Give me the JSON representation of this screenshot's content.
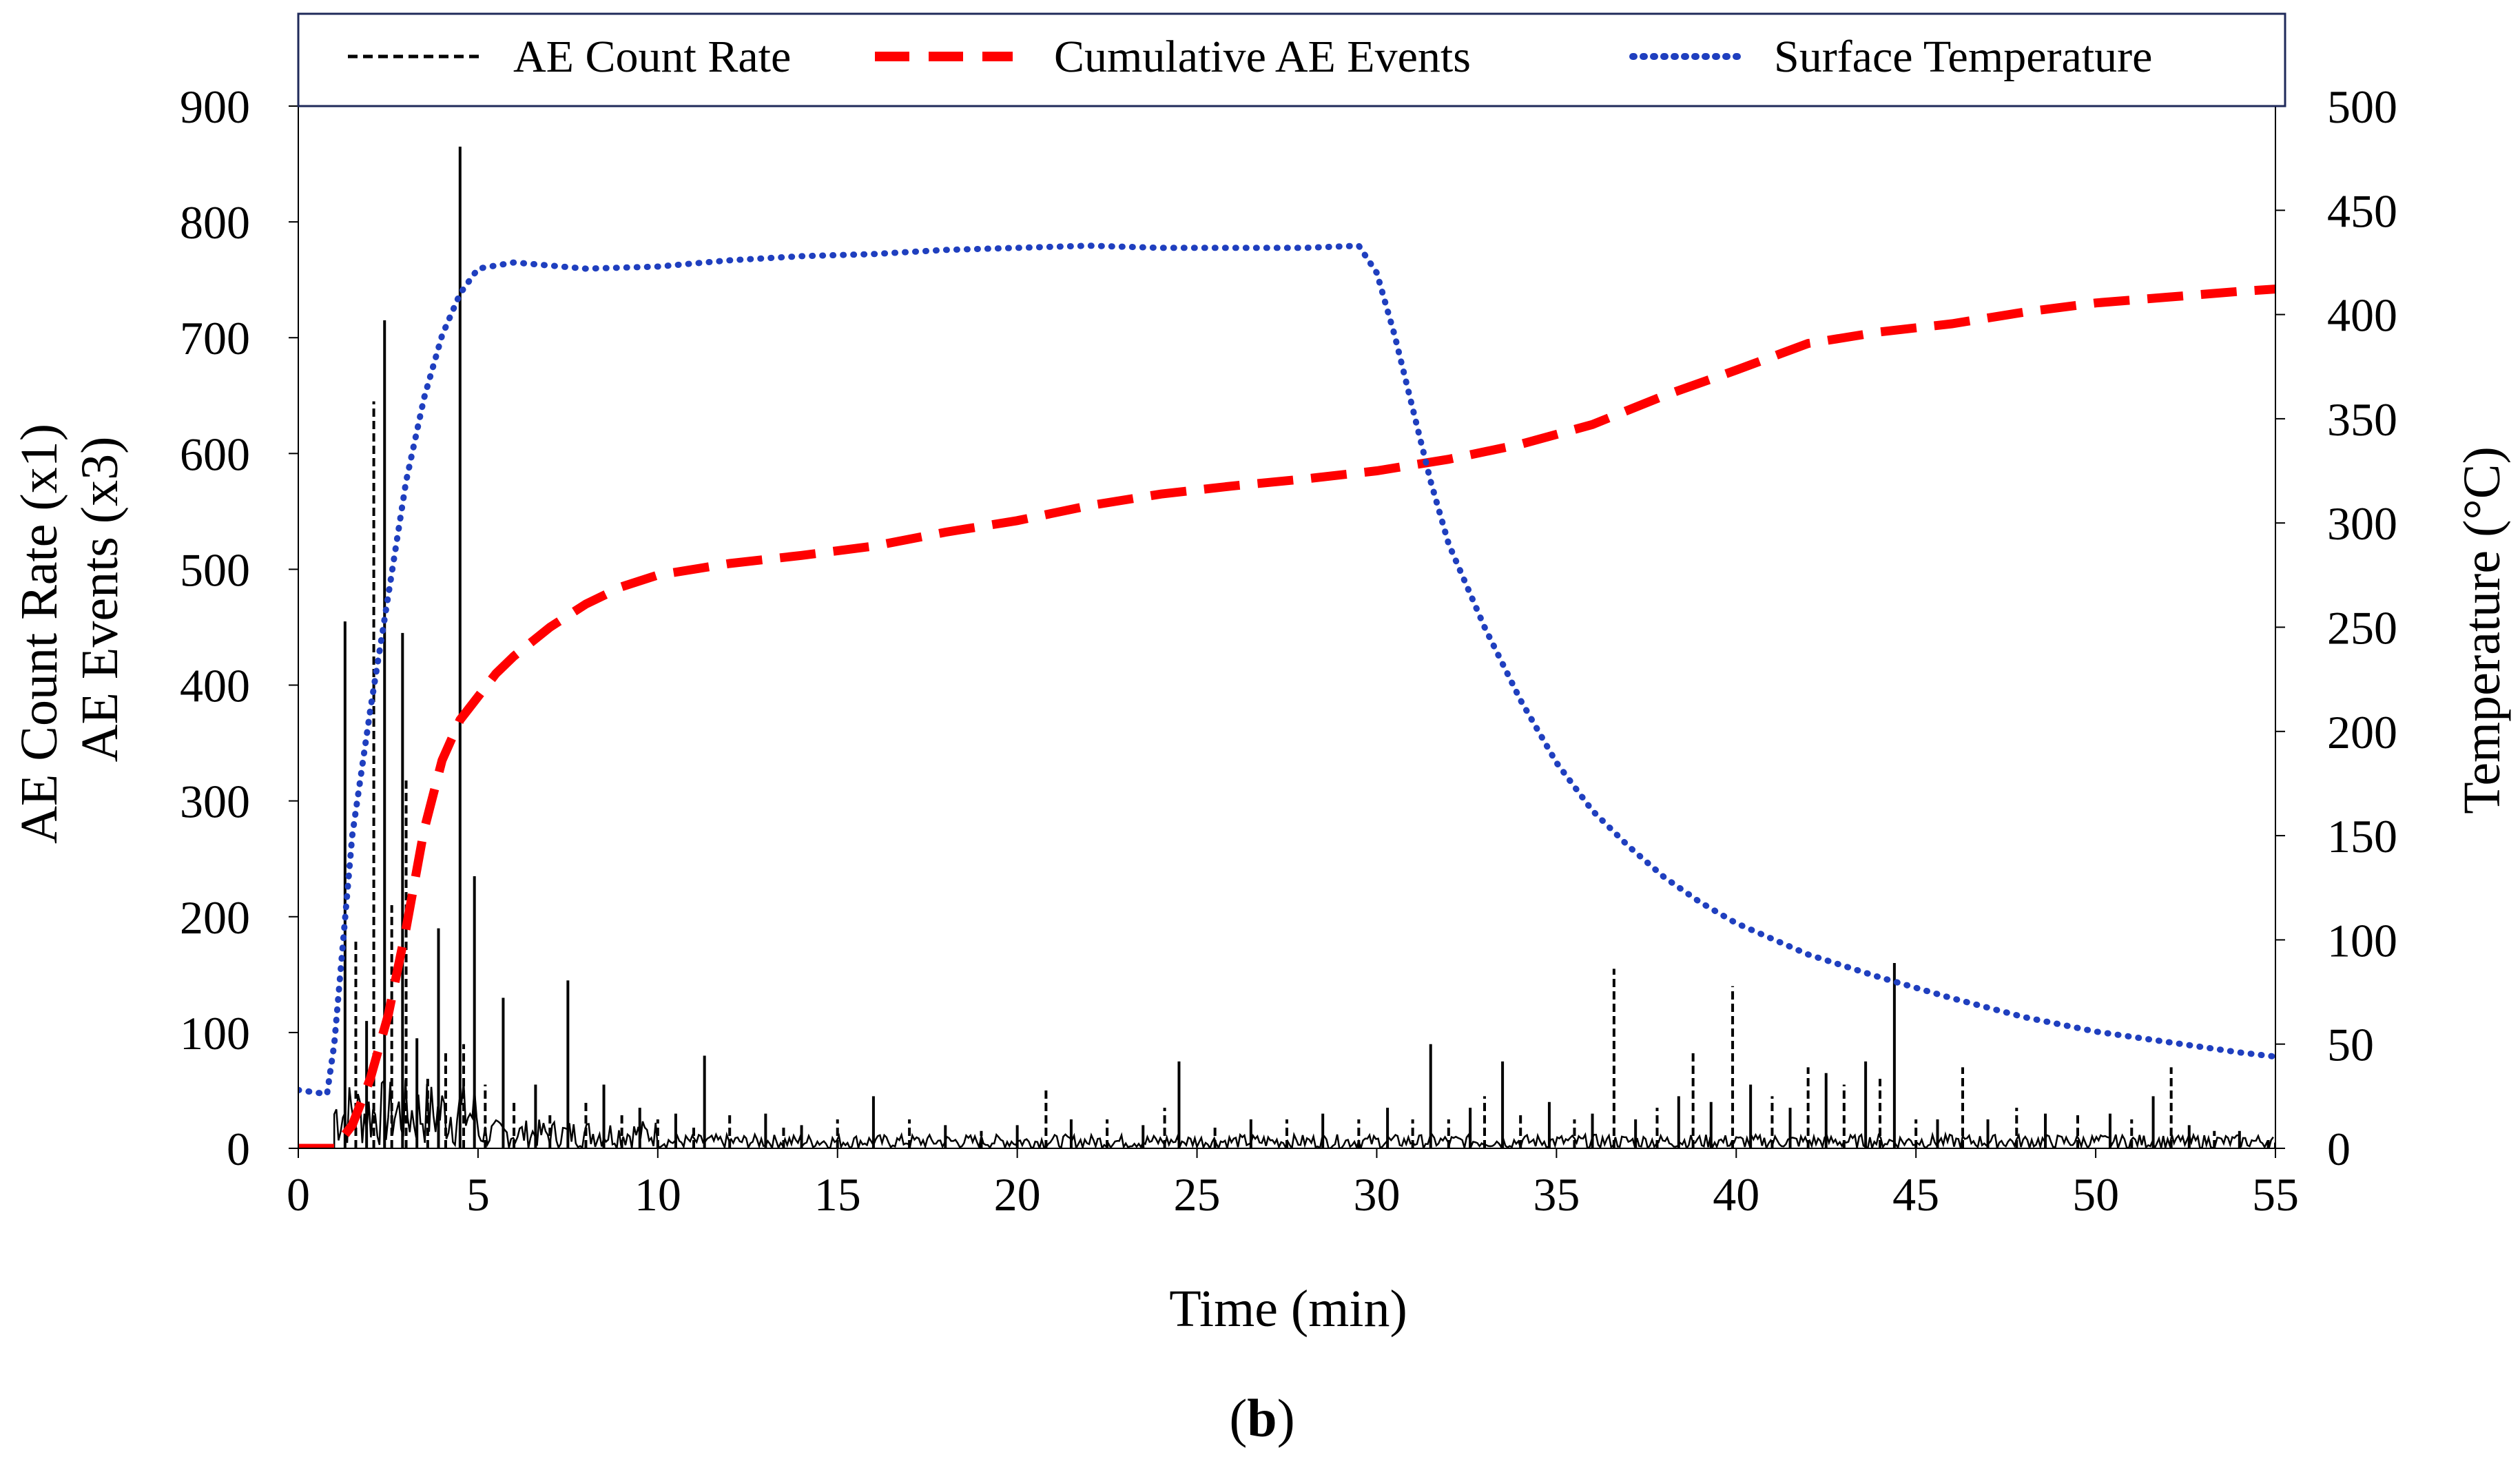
{
  "chart_data": {
    "type": "line",
    "panel_label": "b",
    "xlabel": "Time (min)",
    "ylabel_left_line1": "AE Count Rate (x1)",
    "ylabel_left_line2": "AE Events (x3)",
    "ylabel_right": "Temperature (°C)",
    "xlim": [
      0,
      55
    ],
    "ylim_left": [
      0,
      900
    ],
    "ylim_right": [
      0,
      500
    ],
    "x_ticks": [
      "0",
      "5",
      "10",
      "15",
      "20",
      "25",
      "30",
      "35",
      "40",
      "45",
      "50",
      "55"
    ],
    "y_left_ticks": [
      "0",
      "100",
      "200",
      "300",
      "400",
      "500",
      "600",
      "700",
      "800",
      "900"
    ],
    "y_right_ticks": [
      "0",
      "50",
      "100",
      "150",
      "200",
      "250",
      "300",
      "350",
      "400",
      "450",
      "500"
    ],
    "grid": false,
    "legend_position": "top",
    "legend": [
      "AE Count Rate",
      "Cumulative AE Events",
      "Surface Temperature"
    ],
    "series": [
      {
        "name": "AE Count Rate",
        "axis": "left",
        "color": "#000000",
        "style": "dashed-spikes",
        "x": [
          1.0,
          1.3,
          1.6,
          1.9,
          2.1,
          2.4,
          2.6,
          2.9,
          3.0,
          3.3,
          3.6,
          3.9,
          4.1,
          4.5,
          4.6,
          4.9,
          5.2,
          5.7,
          6.0,
          6.6,
          7.0,
          7.5,
          8.0,
          8.5,
          9.0,
          9.5,
          10.0,
          10.5,
          11.0,
          11.3,
          12.0,
          13.0,
          13.5,
          14.0,
          15.0,
          16.0,
          17.0,
          18.0,
          19.0,
          20.0,
          20.8,
          21.5,
          22.5,
          23.5,
          24.1,
          24.5,
          25.5,
          26.5,
          27.5,
          28.5,
          29.5,
          30.3,
          31.0,
          31.5,
          32.0,
          32.6,
          33.0,
          33.5,
          34.0,
          34.8,
          35.5,
          36.0,
          36.6,
          37.2,
          37.8,
          38.4,
          38.8,
          39.3,
          39.9,
          40.4,
          41.0,
          41.5,
          42.0,
          42.5,
          43.0,
          43.6,
          44.0,
          44.4,
          45.0,
          45.6,
          46.3,
          47.0,
          47.8,
          48.6,
          49.5,
          50.4,
          51.0,
          51.6,
          52.1,
          52.6,
          53.3,
          54.0,
          54.8,
          55.0
        ],
        "values": [
          0,
          455,
          180,
          110,
          645,
          715,
          210,
          445,
          320,
          95,
          60,
          190,
          85,
          865,
          90,
          235,
          55,
          130,
          40,
          55,
          30,
          145,
          40,
          55,
          30,
          35,
          25,
          30,
          20,
          80,
          30,
          30,
          20,
          20,
          25,
          45,
          25,
          20,
          15,
          20,
          50,
          25,
          25,
          20,
          35,
          75,
          20,
          25,
          25,
          30,
          25,
          35,
          25,
          90,
          25,
          35,
          45,
          75,
          30,
          40,
          25,
          30,
          155,
          25,
          35,
          45,
          85,
          40,
          140,
          55,
          45,
          35,
          70,
          65,
          55,
          75,
          60,
          160,
          25,
          25,
          70,
          25,
          35,
          30,
          30,
          30,
          25,
          45,
          70,
          20,
          15,
          15,
          10,
          5
        ]
      },
      {
        "name": "Cumulative AE Events",
        "axis": "left",
        "color": "#ff0000",
        "style": "long-dash",
        "x": [
          0,
          1.0,
          1.5,
          2.0,
          2.5,
          3.0,
          3.5,
          4.0,
          4.5,
          5.0,
          5.5,
          6.0,
          7.0,
          8.0,
          9.0,
          10.0,
          12.0,
          14.0,
          16.0,
          18.0,
          20.0,
          22.0,
          24.0,
          26.0,
          28.0,
          30.0,
          32.0,
          34.0,
          36.0,
          38.0,
          40.0,
          42.0,
          44.0,
          46.0,
          48.0,
          50.0,
          52.0,
          54.0,
          55.0
        ],
        "values": [
          0,
          0,
          20,
          60,
          115,
          190,
          275,
          335,
          370,
          390,
          410,
          425,
          450,
          470,
          485,
          495,
          505,
          512,
          520,
          532,
          542,
          555,
          565,
          572,
          578,
          585,
          595,
          608,
          625,
          650,
          672,
          695,
          705,
          712,
          722,
          730,
          735,
          740,
          742
        ]
      },
      {
        "name": "Surface Temperature",
        "axis": "right",
        "color": "#1f3fbf",
        "style": "dotted",
        "x": [
          0,
          0.8,
          1.0,
          1.5,
          2.0,
          2.5,
          3.0,
          3.5,
          4.0,
          4.5,
          5.0,
          6.0,
          8.0,
          10.0,
          12.0,
          14.0,
          16.0,
          18.0,
          20.0,
          22.0,
          24.0,
          26.0,
          28.0,
          29.5,
          30.0,
          30.5,
          31.0,
          31.5,
          32.0,
          33.0,
          34.0,
          35.0,
          36.0,
          37.0,
          38.0,
          39.0,
          40.0,
          42.0,
          44.0,
          46.0,
          48.0,
          50.0,
          52.0,
          54.0,
          55.0
        ],
        "values": [
          28,
          26,
          50,
          150,
          210,
          265,
          320,
          360,
          390,
          410,
          422,
          425,
          422,
          423,
          426,
          428,
          429,
          431,
          432,
          433,
          432,
          432,
          432,
          433,
          420,
          390,
          355,
          320,
          290,
          250,
          215,
          185,
          162,
          145,
          130,
          118,
          108,
          93,
          82,
          72,
          63,
          56,
          51,
          46,
          44
        ]
      }
    ]
  }
}
